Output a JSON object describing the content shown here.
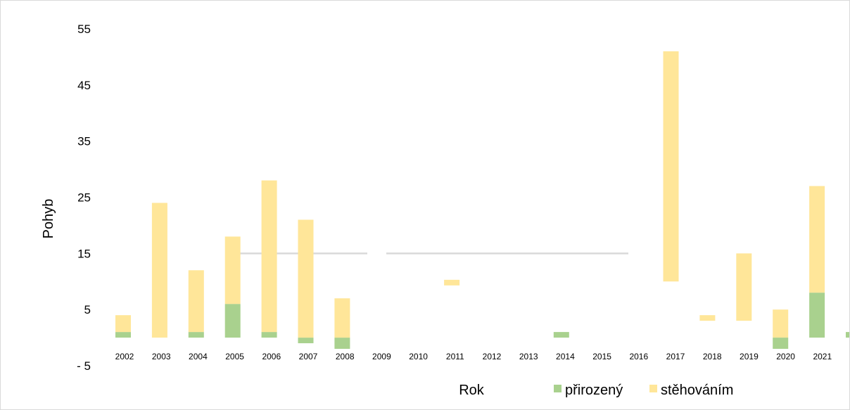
{
  "chart_data": {
    "type": "bar",
    "stacked": true,
    "categories": [
      "2002",
      "2003",
      "2004",
      "2005",
      "2006",
      "2007",
      "2008",
      "2009",
      "2010",
      "2011",
      "2012",
      "2013",
      "2014",
      "2015",
      "2016",
      "2017",
      "2018",
      "2019",
      "2020",
      "2021"
    ],
    "series": [
      {
        "name": "přirozený",
        "color": "#a9d18e",
        "values": [
          1,
          0,
          1,
          6,
          1,
          -1,
          -2,
          0,
          0,
          0,
          0,
          0,
          1,
          0,
          0,
          0,
          0,
          0,
          0,
          0
        ]
      },
      {
        "name": "stěhováním",
        "color": "#ffe699",
        "values": [
          3,
          24,
          11,
          12,
          27,
          21,
          7,
          0,
          0,
          0,
          0,
          0,
          0,
          0,
          0,
          0,
          0,
          0,
          0,
          0
        ]
      }
    ],
    "extra_bars": [
      {
        "slot": 9,
        "series": "stěhováním",
        "bottom": 9.3,
        "top": 10.3
      },
      {
        "slot": 15,
        "series": "stěhováním",
        "bottom": 10,
        "top": 51
      },
      {
        "slot": 16,
        "series": "stěhováním",
        "bottom": 3,
        "top": 4
      },
      {
        "slot": 17,
        "series": "stěhováním",
        "bottom": 3,
        "top": 15
      },
      {
        "slot": 18,
        "series": "stěhováním",
        "bottom": 0,
        "top": 5
      },
      {
        "slot": 18,
        "series": "přirozený",
        "bottom": -2,
        "top": 0
      },
      {
        "slot": 19,
        "series": "stěhováním",
        "bottom": 8,
        "top": 27
      },
      {
        "slot": 19,
        "series": "přirozený",
        "bottom": 0,
        "top": 8
      },
      {
        "slot": 20,
        "series": "přirozený",
        "bottom": 0,
        "top": 1
      }
    ],
    "yticks": [
      "55",
      "45",
      "35",
      "25",
      "15",
      "5",
      "- 5"
    ],
    "ylim": [
      -5,
      55
    ],
    "xlabel": "Rok",
    "ylabel": "Pohyb",
    "legend_position": "bottom",
    "grid": false,
    "reference_line": {
      "y": 15
    }
  }
}
